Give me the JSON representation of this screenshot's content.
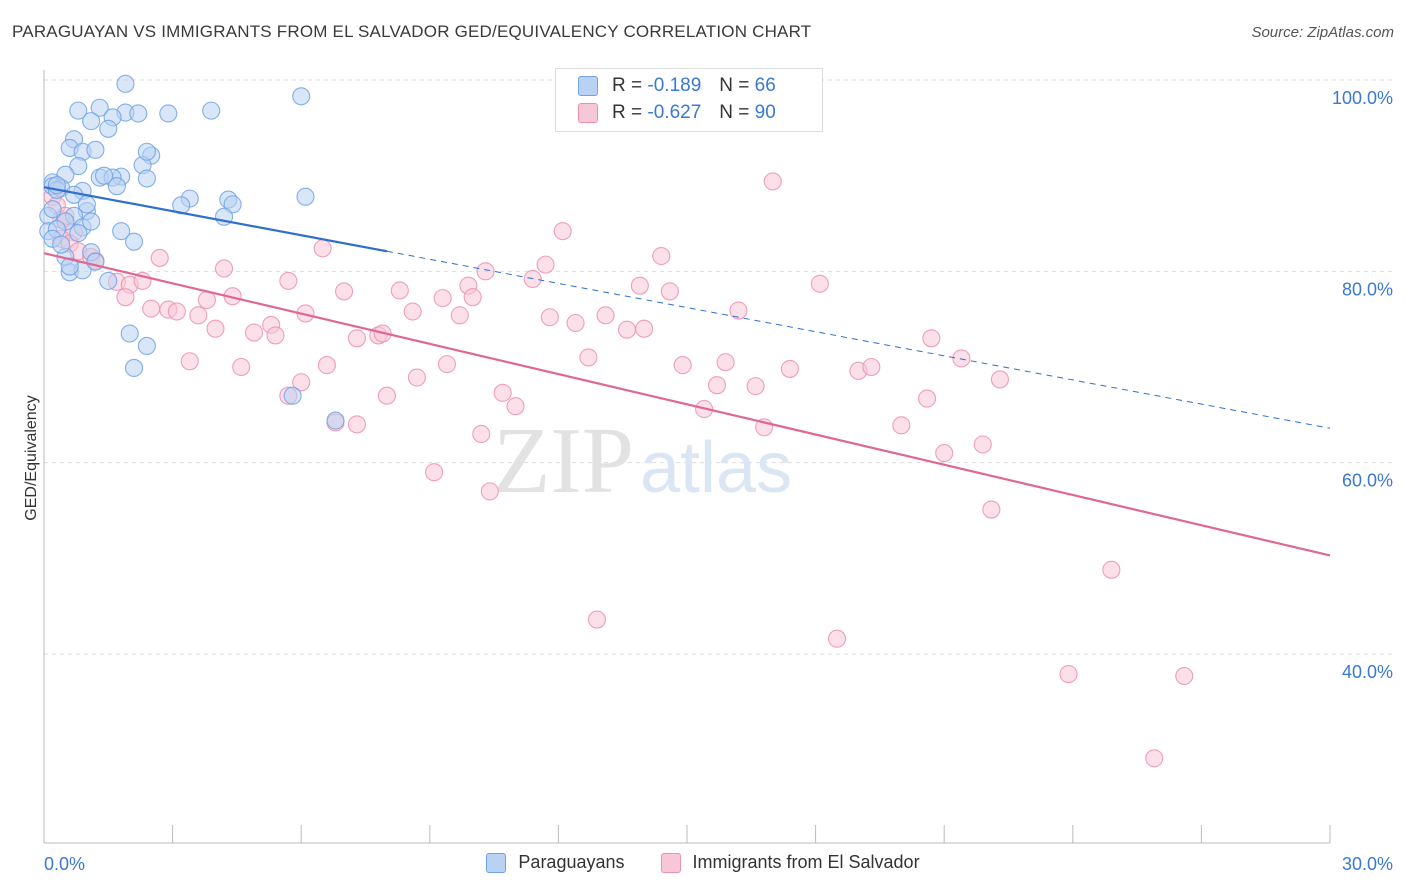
{
  "title": "PARAGUAYAN VS IMMIGRANTS FROM EL SALVADOR GED/EQUIVALENCY CORRELATION CHART",
  "source": "Source: ZipAtlas.com",
  "colors": {
    "blue": "#6fa2e6",
    "blue_fill": "#b9d2f3",
    "blue_line": "#2f6fd0",
    "pink": "#ec8fb0",
    "pink_fill": "#f7c6d7",
    "pink_line": "#e06890",
    "tick_label": "#3a78d4",
    "grid": "#dddddd"
  },
  "legend": {
    "rows": [
      {
        "r_label": "R =",
        "r_value": "-0.189",
        "n_label": "N =",
        "n_value": "66"
      },
      {
        "r_label": "R =",
        "r_value": "-0.627",
        "n_label": "N =",
        "n_value": "90"
      }
    ]
  },
  "bottom_legend": {
    "series1": "Paraguayans",
    "series2": "Immigrants from El Salvador"
  },
  "watermark": {
    "part1": "ZIP",
    "part2": "atlas"
  },
  "chart_data": {
    "type": "scatter",
    "title": "PARAGUAYAN VS IMMIGRANTS FROM EL SALVADOR GED/EQUIVALENCY CORRELATION CHART",
    "xlabel": "",
    "ylabel": "GED/Equivalency",
    "xlim": [
      0,
      30
    ],
    "ylim": [
      20,
      102
    ],
    "x_tick_labels": [
      {
        "x": 0,
        "label": "0.0%"
      },
      {
        "x": 30,
        "label": "30.0%"
      }
    ],
    "y_ticks": [
      {
        "y": 100,
        "label": "100.0%"
      },
      {
        "y": 80,
        "label": "80.0%"
      },
      {
        "y": 60,
        "label": "60.0%"
      },
      {
        "y": 40,
        "label": "40.0%"
      }
    ],
    "series": [
      {
        "name": "Paraguayans",
        "r": -0.189,
        "n": 66,
        "trend": {
          "x0": 0,
          "y0": 88.8,
          "x1": 8,
          "y1": 82.1,
          "dash_x1": 30,
          "dash_y1": 63.6
        },
        "points": [
          [
            1.9,
            99.6
          ],
          [
            6.0,
            98.3
          ],
          [
            1.3,
            97.1
          ],
          [
            0.8,
            96.8
          ],
          [
            1.9,
            96.6
          ],
          [
            2.2,
            96.5
          ],
          [
            2.9,
            96.5
          ],
          [
            3.9,
            96.8
          ],
          [
            1.1,
            95.7
          ],
          [
            1.6,
            96.1
          ],
          [
            1.5,
            94.9
          ],
          [
            0.7,
            93.8
          ],
          [
            0.6,
            92.9
          ],
          [
            0.9,
            92.5
          ],
          [
            1.2,
            92.7
          ],
          [
            2.5,
            92.1
          ],
          [
            2.3,
            91.1
          ],
          [
            0.8,
            91.0
          ],
          [
            0.5,
            90.1
          ],
          [
            0.2,
            89.3
          ],
          [
            0.2,
            88.9
          ],
          [
            1.8,
            89.9
          ],
          [
            1.3,
            89.8
          ],
          [
            1.6,
            89.8
          ],
          [
            2.4,
            89.7
          ],
          [
            0.4,
            88.7
          ],
          [
            0.3,
            88.5
          ],
          [
            0.9,
            88.4
          ],
          [
            1.7,
            88.9
          ],
          [
            6.1,
            87.8
          ],
          [
            3.4,
            87.6
          ],
          [
            4.3,
            87.5
          ],
          [
            3.2,
            86.9
          ],
          [
            4.4,
            87.0
          ],
          [
            1.0,
            86.3
          ],
          [
            0.7,
            85.8
          ],
          [
            0.1,
            85.8
          ],
          [
            0.5,
            85.2
          ],
          [
            0.9,
            84.6
          ],
          [
            1.1,
            85.2
          ],
          [
            0.1,
            84.2
          ],
          [
            0.3,
            84.4
          ],
          [
            0.8,
            84.0
          ],
          [
            4.2,
            85.7
          ],
          [
            1.8,
            84.2
          ],
          [
            2.1,
            83.1
          ],
          [
            0.2,
            83.4
          ],
          [
            1.1,
            82.0
          ],
          [
            0.5,
            81.5
          ],
          [
            0.6,
            79.9
          ],
          [
            0.9,
            80.1
          ],
          [
            1.5,
            79.0
          ],
          [
            2.0,
            73.5
          ],
          [
            2.4,
            72.2
          ],
          [
            2.1,
            69.9
          ],
          [
            5.8,
            67.0
          ],
          [
            6.8,
            64.4
          ],
          [
            0.3,
            89.0
          ],
          [
            1.4,
            90.0
          ],
          [
            0.7,
            88.0
          ],
          [
            0.2,
            86.5
          ],
          [
            1.0,
            87.0
          ],
          [
            2.4,
            92.5
          ],
          [
            0.4,
            82.8
          ],
          [
            0.6,
            80.5
          ],
          [
            1.2,
            81.0
          ]
        ]
      },
      {
        "name": "Immigrants from El Salvador",
        "r": -0.627,
        "n": 90,
        "trend": {
          "x0": 0,
          "y0": 81.9,
          "x1": 30,
          "y1": 50.3
        },
        "points": [
          [
            0.2,
            87.8
          ],
          [
            0.3,
            86.9
          ],
          [
            0.4,
            85.4
          ],
          [
            0.5,
            85.8
          ],
          [
            0.7,
            84.1
          ],
          [
            0.4,
            83.4
          ],
          [
            0.6,
            82.9
          ],
          [
            0.8,
            82.1
          ],
          [
            1.1,
            81.5
          ],
          [
            1.2,
            81.1
          ],
          [
            2.7,
            81.4
          ],
          [
            4.2,
            80.3
          ],
          [
            1.7,
            78.9
          ],
          [
            2.0,
            78.6
          ],
          [
            2.3,
            79.0
          ],
          [
            1.9,
            77.3
          ],
          [
            2.5,
            76.1
          ],
          [
            2.9,
            76.0
          ],
          [
            3.1,
            75.8
          ],
          [
            3.6,
            75.4
          ],
          [
            3.8,
            77.0
          ],
          [
            4.4,
            77.4
          ],
          [
            5.7,
            79.0
          ],
          [
            6.1,
            75.6
          ],
          [
            6.5,
            82.4
          ],
          [
            7.0,
            77.9
          ],
          [
            3.4,
            70.6
          ],
          [
            4.0,
            74.0
          ],
          [
            4.6,
            70.0
          ],
          [
            4.9,
            73.6
          ],
          [
            5.3,
            74.4
          ],
          [
            5.4,
            73.3
          ],
          [
            5.7,
            67.0
          ],
          [
            6.0,
            68.4
          ],
          [
            6.6,
            70.2
          ],
          [
            6.8,
            64.2
          ],
          [
            7.3,
            64.0
          ],
          [
            7.3,
            73.0
          ],
          [
            7.8,
            73.3
          ],
          [
            7.9,
            73.5
          ],
          [
            8.3,
            78.0
          ],
          [
            8.0,
            67.0
          ],
          [
            8.6,
            75.8
          ],
          [
            8.7,
            68.9
          ],
          [
            9.3,
            77.2
          ],
          [
            9.4,
            70.3
          ],
          [
            9.7,
            75.4
          ],
          [
            9.9,
            78.5
          ],
          [
            10.0,
            77.3
          ],
          [
            10.3,
            80.0
          ],
          [
            10.2,
            63.0
          ],
          [
            10.4,
            57.0
          ],
          [
            10.7,
            67.3
          ],
          [
            11.0,
            65.9
          ],
          [
            11.4,
            79.2
          ],
          [
            11.7,
            80.7
          ],
          [
            11.8,
            75.2
          ],
          [
            12.1,
            84.2
          ],
          [
            12.4,
            74.6
          ],
          [
            12.7,
            71.0
          ],
          [
            13.1,
            75.4
          ],
          [
            13.6,
            73.9
          ],
          [
            13.9,
            78.5
          ],
          [
            14.0,
            74.0
          ],
          [
            14.4,
            81.6
          ],
          [
            14.6,
            77.9
          ],
          [
            14.9,
            70.2
          ],
          [
            15.4,
            65.6
          ],
          [
            15.7,
            68.1
          ],
          [
            15.9,
            70.5
          ],
          [
            16.2,
            75.9
          ],
          [
            16.6,
            68.0
          ],
          [
            16.8,
            63.7
          ],
          [
            17.0,
            89.4
          ],
          [
            17.4,
            69.8
          ],
          [
            18.1,
            78.7
          ],
          [
            19.0,
            69.6
          ],
          [
            19.3,
            70.0
          ],
          [
            20.0,
            63.9
          ],
          [
            20.6,
            66.7
          ],
          [
            20.7,
            73.0
          ],
          [
            21.0,
            61.0
          ],
          [
            21.4,
            70.9
          ],
          [
            21.9,
            61.9
          ],
          [
            22.1,
            55.1
          ],
          [
            22.3,
            68.7
          ],
          [
            9.1,
            59.0
          ],
          [
            12.9,
            43.6
          ],
          [
            18.5,
            41.6
          ],
          [
            24.9,
            48.8
          ]
        ],
        "extra_points": [
          [
            23.9,
            37.9
          ],
          [
            26.6,
            37.7
          ],
          [
            25.9,
            29.1
          ]
        ]
      }
    ]
  }
}
